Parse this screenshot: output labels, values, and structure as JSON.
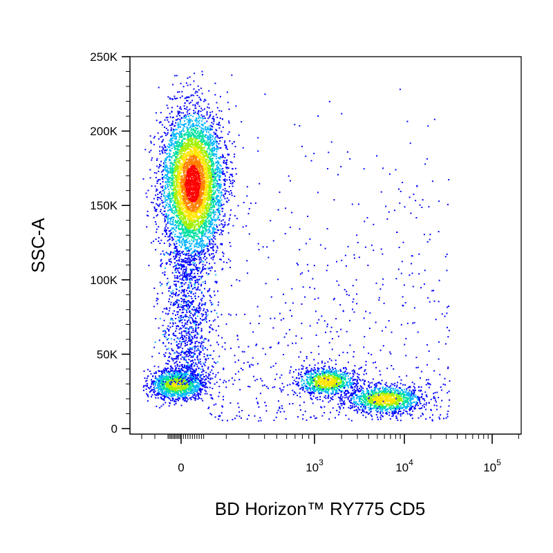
{
  "chart_data": {
    "type": "scatter",
    "subtype": "flow-cytometry density dot plot (pseudocolor)",
    "xlabel": "BD Horizon™ RY775 CD5",
    "ylabel": "SSC-A",
    "x_scale": "biexponential",
    "y_scale": "linear",
    "ylim": [
      0,
      250000
    ],
    "y_ticks": [
      {
        "value": 0,
        "label": "0"
      },
      {
        "value": 50000,
        "label": "50K"
      },
      {
        "value": 100000,
        "label": "100K"
      },
      {
        "value": 150000,
        "label": "150K"
      },
      {
        "value": 200000,
        "label": "200K"
      },
      {
        "value": 250000,
        "label": "250K"
      }
    ],
    "x_ticks": [
      {
        "value": 0,
        "base": "0",
        "exp": ""
      },
      {
        "value": 1000,
        "base": "10",
        "exp": "3"
      },
      {
        "value": 10000,
        "base": "10",
        "exp": "4"
      },
      {
        "value": 100000,
        "base": "10",
        "exp": "5"
      }
    ],
    "color_scale": [
      "#0000ff",
      "#00b4ff",
      "#00e0a0",
      "#a0f000",
      "#ffe600",
      "#ff8000",
      "#ff0000"
    ],
    "populations": [
      {
        "name": "CD5-negative, high SSC",
        "x_center": 60,
        "y_center": 165000,
        "relative_density": "high"
      },
      {
        "name": "CD5-negative, low SSC",
        "x_center": 0,
        "y_center": 30000,
        "relative_density": "medium"
      },
      {
        "name": "CD5-positive (dim)",
        "x_center": 1800,
        "y_center": 32000,
        "relative_density": "medium"
      },
      {
        "name": "CD5-positive (bright)",
        "x_center": 5500,
        "y_center": 20000,
        "relative_density": "medium"
      }
    ],
    "grid": false,
    "legend": "none"
  }
}
